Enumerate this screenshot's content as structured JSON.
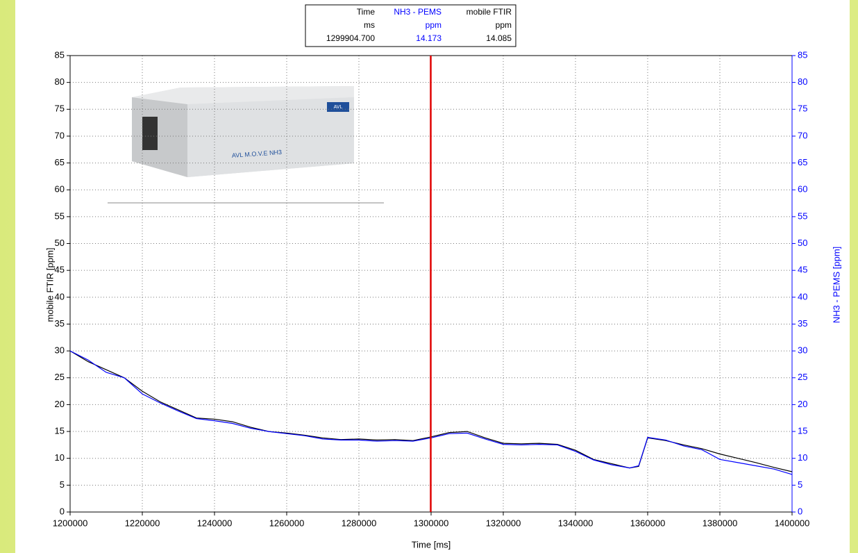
{
  "chart_data": {
    "type": "line",
    "x_label": "Time [ms]",
    "y_label": "mobile FTIR [ppm]",
    "y2_label": "NH3 - PEMS [ppm]",
    "x": [
      1200000,
      1205000,
      1210000,
      1215000,
      1220000,
      1225000,
      1230000,
      1235000,
      1240000,
      1245000,
      1250000,
      1255000,
      1260000,
      1265000,
      1270000,
      1275000,
      1280000,
      1285000,
      1290000,
      1295000,
      1300000,
      1305000,
      1310000,
      1315000,
      1320000,
      1325000,
      1330000,
      1335000,
      1340000,
      1345000,
      1350000,
      1355000,
      1357500,
      1360000,
      1365000,
      1370000,
      1375000,
      1380000,
      1385000,
      1390000,
      1395000,
      1400000
    ],
    "series": [
      {
        "name": "mobile FTIR",
        "color": "#000000",
        "axis": "y",
        "values": [
          30,
          28,
          26.5,
          25,
          22.5,
          20.5,
          19,
          17.5,
          17.3,
          16.8,
          15.8,
          15,
          14.7,
          14.3,
          13.8,
          13.5,
          13.6,
          13.4,
          13.5,
          13.3,
          14,
          14.8,
          15,
          13.8,
          12.8,
          12.7,
          12.8,
          12.6,
          11.5,
          9.8,
          9,
          8.2,
          8.5,
          13.8,
          13.3,
          12.5,
          11.8,
          10.8,
          10,
          9.2,
          8.3,
          7.5
        ]
      },
      {
        "name": "NH3 - PEMS",
        "color": "#0000ff",
        "axis": "y2",
        "values": [
          30,
          28.3,
          26,
          25,
          22,
          20.3,
          18.8,
          17.4,
          17,
          16.5,
          15.6,
          15,
          14.6,
          14.2,
          13.6,
          13.4,
          13.4,
          13.2,
          13.3,
          13.2,
          13.8,
          14.6,
          14.7,
          13.6,
          12.6,
          12.5,
          12.6,
          12.5,
          11.3,
          9.7,
          8.8,
          8.2,
          8.6,
          13.9,
          13.4,
          12.3,
          11.6,
          9.8,
          9.2,
          8.6,
          8,
          7
        ]
      }
    ],
    "xlim": [
      1200000,
      1400000
    ],
    "xticks": [
      1200000,
      1220000,
      1240000,
      1260000,
      1280000,
      1300000,
      1320000,
      1340000,
      1360000,
      1380000,
      1400000
    ],
    "ylim": [
      0,
      85
    ],
    "yticks": [
      0,
      5,
      10,
      15,
      20,
      25,
      30,
      35,
      40,
      45,
      50,
      55,
      60,
      65,
      70,
      75,
      80,
      85
    ],
    "y2lim": [
      0,
      85
    ],
    "y2ticks": [
      0,
      5,
      10,
      15,
      20,
      25,
      30,
      35,
      40,
      45,
      50,
      55,
      60,
      65,
      70,
      75,
      80,
      85
    ],
    "grid": true,
    "cursor_x": 1299904.7,
    "cursor_color": "#e00000",
    "readout": [
      [
        "Time",
        "NH3 - PEMS",
        "mobile FTIR"
      ],
      [
        "ms",
        "ppm",
        "ppm"
      ],
      [
        "1299904.700",
        "14.173",
        "14.085"
      ]
    ],
    "annotations": [
      "AVL M.O.V.E NH3",
      "AVL"
    ]
  }
}
